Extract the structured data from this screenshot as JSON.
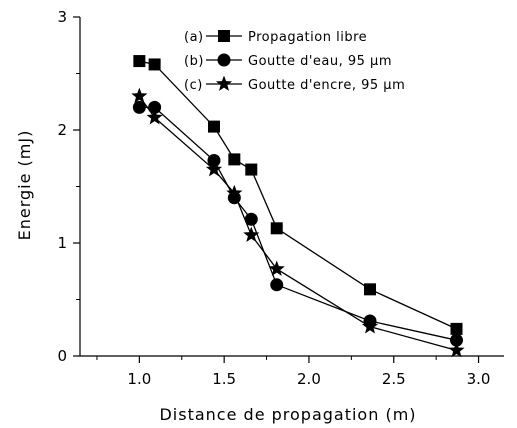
{
  "chart_data": {
    "type": "line",
    "xlabel": "Distance de propagation (m)",
    "ylabel": "Energie (mJ)",
    "xlim": [
      0.65,
      3.15
    ],
    "ylim": [
      0,
      3
    ],
    "xticks": [
      1.0,
      1.5,
      2.0,
      2.5,
      3.0
    ],
    "xtick_labels": [
      "1.0",
      "1.5",
      "2.0",
      "2.5",
      "3.0"
    ],
    "yticks": [
      0,
      1,
      2,
      3
    ],
    "ytick_labels": [
      "0",
      "1",
      "2",
      "3"
    ],
    "grid": false,
    "legend_position": "top-right",
    "series": [
      {
        "name": "(a)—■— Propagation libre",
        "label_prefix": "(a)",
        "label_text": "Propagation libre",
        "marker": "square",
        "x": [
          1.0,
          1.09,
          1.44,
          1.56,
          1.66,
          1.81,
          2.36,
          2.87
        ],
        "y": [
          2.61,
          2.58,
          2.03,
          1.74,
          1.65,
          1.13,
          0.59,
          0.24
        ]
      },
      {
        "name": "(b)—●— Goutte d'eau, 95 µm",
        "label_prefix": "(b)",
        "label_text": "Goutte d'eau, 95 µm",
        "marker": "circle",
        "x": [
          1.0,
          1.09,
          1.44,
          1.56,
          1.66,
          1.81,
          2.36,
          2.87
        ],
        "y": [
          2.2,
          2.2,
          1.73,
          1.4,
          1.21,
          0.63,
          0.31,
          0.14
        ]
      },
      {
        "name": "(c)—★— Goutte d'encre, 95 µm",
        "label_prefix": "(c)",
        "label_text": "Goutte d'encre, 95 µm",
        "marker": "star",
        "x": [
          1.0,
          1.09,
          1.44,
          1.56,
          1.66,
          1.81,
          2.36,
          2.87
        ],
        "y": [
          2.3,
          2.11,
          1.65,
          1.44,
          1.07,
          0.77,
          0.26,
          0.05
        ]
      }
    ]
  }
}
